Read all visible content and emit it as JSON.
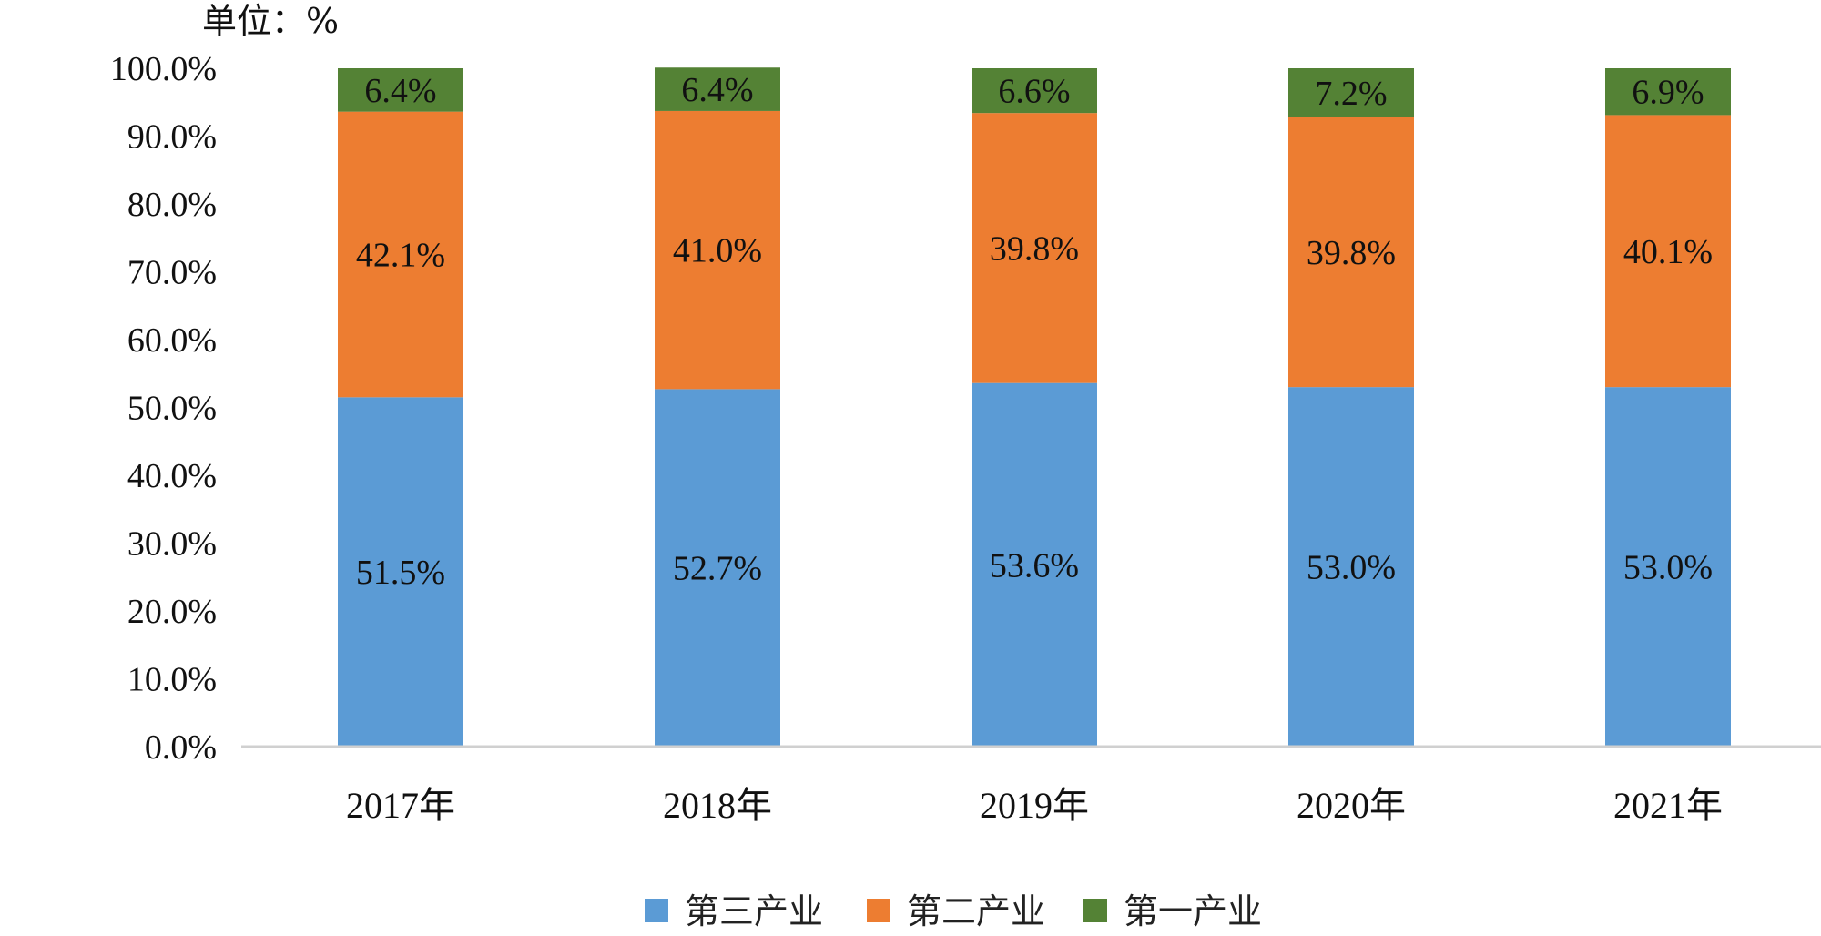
{
  "chart_data": {
    "type": "bar",
    "stacked": true,
    "unit_label": "单位：%",
    "categories": [
      "2017年",
      "2018年",
      "2019年",
      "2020年",
      "2021年"
    ],
    "series": [
      {
        "name": "第三产业",
        "color": "#5B9BD5",
        "values": [
          51.5,
          52.7,
          53.6,
          53.0,
          53.0
        ],
        "labels": [
          "51.5%",
          "52.7%",
          "53.6%",
          "53.0%",
          "53.0%"
        ]
      },
      {
        "name": "第二产业",
        "color": "#ED7D31",
        "values": [
          42.1,
          41.0,
          39.8,
          39.8,
          40.1
        ],
        "labels": [
          "42.1%",
          "41.0%",
          "39.8%",
          "39.8%",
          "40.1%"
        ]
      },
      {
        "name": "第一产业",
        "color": "#548235",
        "values": [
          6.4,
          6.4,
          6.6,
          7.2,
          6.9
        ],
        "labels": [
          "6.4%",
          "6.4%",
          "6.6%",
          "7.2%",
          "6.9%"
        ]
      }
    ],
    "ylim": [
      0,
      100
    ],
    "yticks": [
      0,
      10,
      20,
      30,
      40,
      50,
      60,
      70,
      80,
      90,
      100
    ],
    "ytick_labels": [
      "0.0%",
      "10.0%",
      "20.0%",
      "30.0%",
      "40.0%",
      "50.0%",
      "60.0%",
      "70.0%",
      "80.0%",
      "90.0%",
      "100.0%"
    ],
    "grid": false,
    "legend_position": "bottom-center"
  }
}
